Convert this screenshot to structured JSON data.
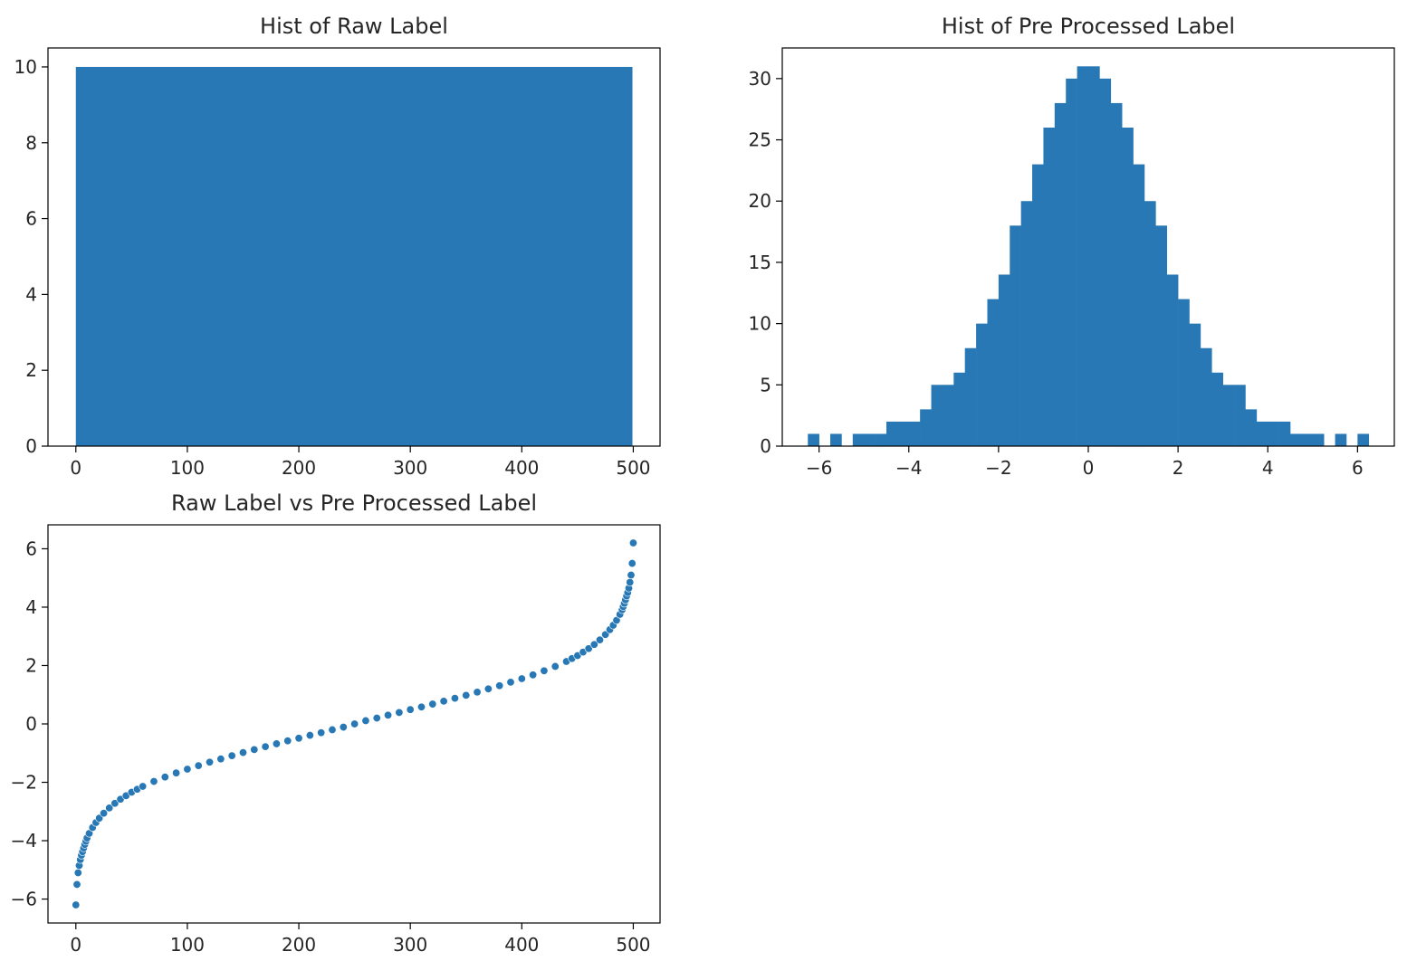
{
  "colors": {
    "bar": "#2878b5",
    "point": "#2878b5",
    "axis": "#000000",
    "text": "#262626",
    "background": "#ffffff"
  },
  "chart_data": [
    {
      "type": "bar",
      "title": "Hist of Raw Label",
      "xlabel": "",
      "ylabel": "",
      "xlim": [
        -25,
        524
      ],
      "ylim": [
        0,
        10.5
      ],
      "xticks": [
        0,
        100,
        200,
        300,
        400,
        500
      ],
      "yticks": [
        0,
        2,
        4,
        6,
        8,
        10
      ],
      "grid": false,
      "bins": [
        {
          "x0": 0,
          "x1": 499,
          "count": 10
        }
      ]
    },
    {
      "type": "bar",
      "title": "Hist of Pre Processed Label",
      "xlabel": "",
      "ylabel": "",
      "xlim": [
        -6.82,
        6.82
      ],
      "ylim": [
        0,
        32.5
      ],
      "xticks": [
        -6,
        -4,
        -2,
        0,
        2,
        4,
        6
      ],
      "yticks": [
        0,
        5,
        10,
        15,
        20,
        25,
        30
      ],
      "grid": false,
      "bins": [
        {
          "x0": -6.25,
          "x1": -6.0,
          "count": 1
        },
        {
          "x0": -6.0,
          "x1": -5.75,
          "count": 0
        },
        {
          "x0": -5.75,
          "x1": -5.5,
          "count": 1
        },
        {
          "x0": -5.5,
          "x1": -5.25,
          "count": 0
        },
        {
          "x0": -5.25,
          "x1": -5.0,
          "count": 1
        },
        {
          "x0": -5.0,
          "x1": -4.75,
          "count": 1
        },
        {
          "x0": -4.75,
          "x1": -4.5,
          "count": 1
        },
        {
          "x0": -4.5,
          "x1": -4.25,
          "count": 2
        },
        {
          "x0": -4.25,
          "x1": -4.0,
          "count": 2
        },
        {
          "x0": -4.0,
          "x1": -3.75,
          "count": 2
        },
        {
          "x0": -3.75,
          "x1": -3.5,
          "count": 3
        },
        {
          "x0": -3.5,
          "x1": -3.25,
          "count": 5
        },
        {
          "x0": -3.25,
          "x1": -3.0,
          "count": 5
        },
        {
          "x0": -3.0,
          "x1": -2.75,
          "count": 6
        },
        {
          "x0": -2.75,
          "x1": -2.5,
          "count": 8
        },
        {
          "x0": -2.5,
          "x1": -2.25,
          "count": 10
        },
        {
          "x0": -2.25,
          "x1": -2.0,
          "count": 12
        },
        {
          "x0": -2.0,
          "x1": -1.75,
          "count": 14
        },
        {
          "x0": -1.75,
          "x1": -1.5,
          "count": 18
        },
        {
          "x0": -1.5,
          "x1": -1.25,
          "count": 20
        },
        {
          "x0": -1.25,
          "x1": -1.0,
          "count": 23
        },
        {
          "x0": -1.0,
          "x1": -0.75,
          "count": 26
        },
        {
          "x0": -0.75,
          "x1": -0.5,
          "count": 28
        },
        {
          "x0": -0.5,
          "x1": -0.25,
          "count": 30
        },
        {
          "x0": -0.25,
          "x1": 0.0,
          "count": 31
        },
        {
          "x0": 0.0,
          "x1": 0.25,
          "count": 31
        },
        {
          "x0": 0.25,
          "x1": 0.5,
          "count": 30
        },
        {
          "x0": 0.5,
          "x1": 0.75,
          "count": 28
        },
        {
          "x0": 0.75,
          "x1": 1.0,
          "count": 26
        },
        {
          "x0": 1.0,
          "x1": 1.25,
          "count": 23
        },
        {
          "x0": 1.25,
          "x1": 1.5,
          "count": 20
        },
        {
          "x0": 1.5,
          "x1": 1.75,
          "count": 18
        },
        {
          "x0": 1.75,
          "x1": 2.0,
          "count": 14
        },
        {
          "x0": 2.0,
          "x1": 2.25,
          "count": 12
        },
        {
          "x0": 2.25,
          "x1": 2.5,
          "count": 10
        },
        {
          "x0": 2.5,
          "x1": 2.75,
          "count": 8
        },
        {
          "x0": 2.75,
          "x1": 3.0,
          "count": 6
        },
        {
          "x0": 3.0,
          "x1": 3.25,
          "count": 5
        },
        {
          "x0": 3.25,
          "x1": 3.5,
          "count": 5
        },
        {
          "x0": 3.5,
          "x1": 3.75,
          "count": 3
        },
        {
          "x0": 3.75,
          "x1": 4.0,
          "count": 2
        },
        {
          "x0": 4.0,
          "x1": 4.25,
          "count": 2
        },
        {
          "x0": 4.25,
          "x1": 4.5,
          "count": 2
        },
        {
          "x0": 4.5,
          "x1": 4.75,
          "count": 1
        },
        {
          "x0": 4.75,
          "x1": 5.0,
          "count": 1
        },
        {
          "x0": 5.0,
          "x1": 5.25,
          "count": 1
        },
        {
          "x0": 5.25,
          "x1": 5.5,
          "count": 0
        },
        {
          "x0": 5.5,
          "x1": 5.75,
          "count": 1
        },
        {
          "x0": 5.75,
          "x1": 6.0,
          "count": 0
        },
        {
          "x0": 6.0,
          "x1": 6.25,
          "count": 1
        }
      ]
    },
    {
      "type": "scatter",
      "title": "Raw Label vs Pre Processed Label",
      "xlabel": "",
      "ylabel": "",
      "xlim": [
        -25,
        524
      ],
      "ylim": [
        -6.82,
        6.82
      ],
      "xticks": [
        0,
        100,
        200,
        300,
        400,
        500
      ],
      "yticks": [
        -6,
        -4,
        -2,
        0,
        2,
        4,
        6
      ],
      "grid": false,
      "points": [
        [
          0,
          -6.2
        ],
        [
          1,
          -5.5
        ],
        [
          2,
          -5.1
        ],
        [
          3,
          -4.85
        ],
        [
          4,
          -4.65
        ],
        [
          5,
          -4.5
        ],
        [
          6,
          -4.38
        ],
        [
          7,
          -4.25
        ],
        [
          8,
          -4.13
        ],
        [
          9,
          -4.02
        ],
        [
          10,
          -3.91
        ],
        [
          12,
          -3.75
        ],
        [
          15,
          -3.55
        ],
        [
          18,
          -3.38
        ],
        [
          21,
          -3.23
        ],
        [
          25,
          -3.06
        ],
        [
          30,
          -2.88
        ],
        [
          35,
          -2.72
        ],
        [
          40,
          -2.58
        ],
        [
          45,
          -2.46
        ],
        [
          50,
          -2.34
        ],
        [
          55,
          -2.24
        ],
        [
          60,
          -2.14
        ],
        [
          70,
          -1.97
        ],
        [
          80,
          -1.82
        ],
        [
          90,
          -1.68
        ],
        [
          100,
          -1.55
        ],
        [
          110,
          -1.43
        ],
        [
          120,
          -1.31
        ],
        [
          130,
          -1.2
        ],
        [
          140,
          -1.09
        ],
        [
          150,
          -0.98
        ],
        [
          160,
          -0.88
        ],
        [
          170,
          -0.78
        ],
        [
          180,
          -0.68
        ],
        [
          190,
          -0.58
        ],
        [
          200,
          -0.49
        ],
        [
          210,
          -0.39
        ],
        [
          220,
          -0.3
        ],
        [
          230,
          -0.2
        ],
        [
          240,
          -0.11
        ],
        [
          250,
          0.0
        ],
        [
          260,
          0.11
        ],
        [
          270,
          0.2
        ],
        [
          280,
          0.3
        ],
        [
          290,
          0.39
        ],
        [
          300,
          0.49
        ],
        [
          310,
          0.58
        ],
        [
          320,
          0.68
        ],
        [
          330,
          0.78
        ],
        [
          340,
          0.88
        ],
        [
          350,
          0.98
        ],
        [
          360,
          1.09
        ],
        [
          370,
          1.2
        ],
        [
          380,
          1.31
        ],
        [
          390,
          1.43
        ],
        [
          400,
          1.55
        ],
        [
          410,
          1.68
        ],
        [
          420,
          1.82
        ],
        [
          430,
          1.97
        ],
        [
          440,
          2.14
        ],
        [
          445,
          2.24
        ],
        [
          450,
          2.34
        ],
        [
          455,
          2.46
        ],
        [
          460,
          2.58
        ],
        [
          465,
          2.72
        ],
        [
          470,
          2.88
        ],
        [
          475,
          3.06
        ],
        [
          479,
          3.23
        ],
        [
          482,
          3.38
        ],
        [
          485,
          3.55
        ],
        [
          488,
          3.75
        ],
        [
          490,
          3.91
        ],
        [
          491,
          4.02
        ],
        [
          492,
          4.13
        ],
        [
          493,
          4.25
        ],
        [
          494,
          4.38
        ],
        [
          495,
          4.5
        ],
        [
          496,
          4.65
        ],
        [
          497,
          4.85
        ],
        [
          498,
          5.1
        ],
        [
          499,
          5.5
        ],
        [
          500,
          6.2
        ]
      ]
    }
  ]
}
